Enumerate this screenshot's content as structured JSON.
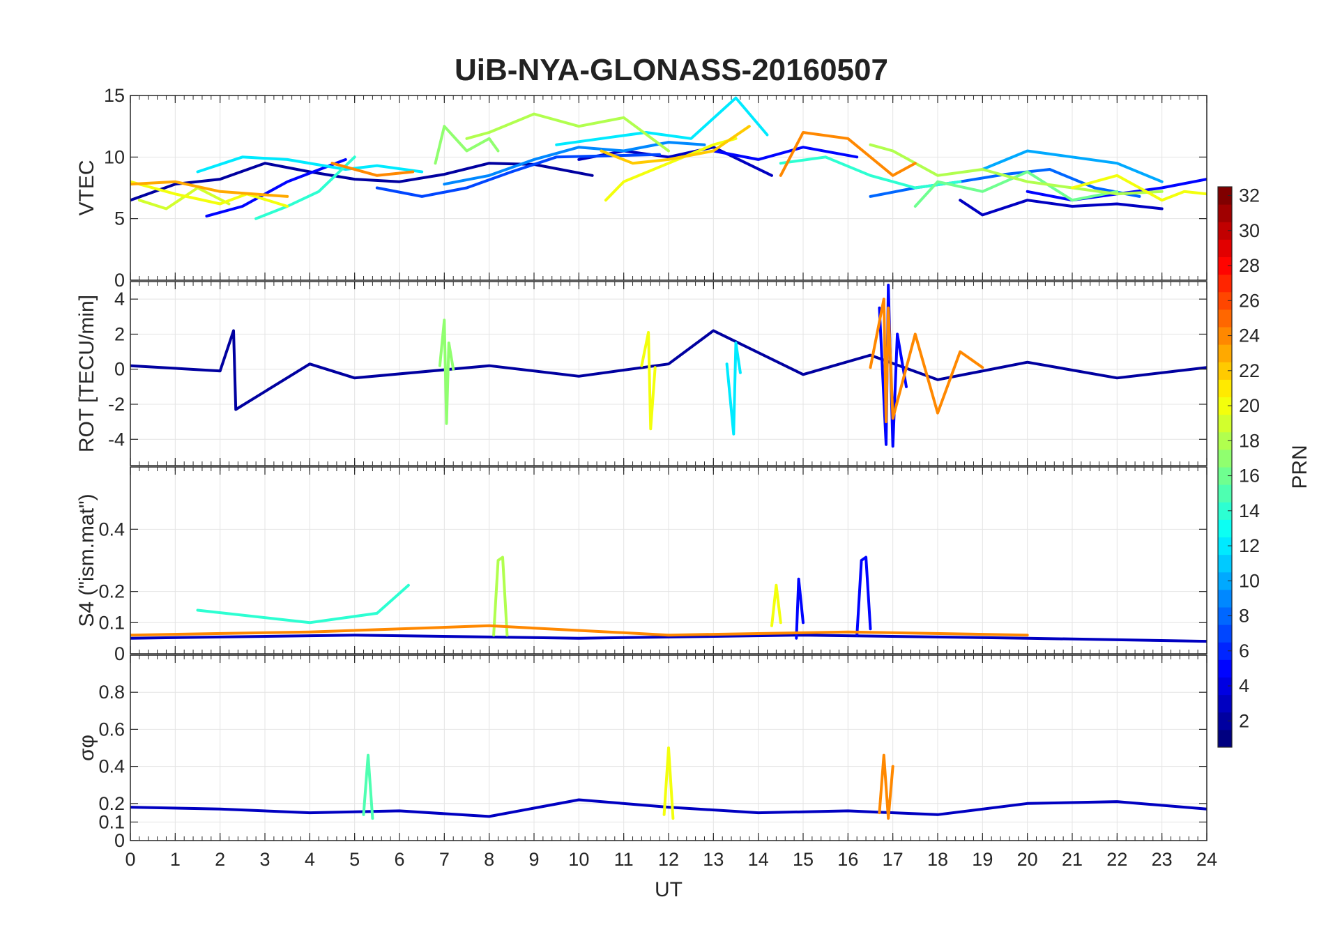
{
  "chart_data": {
    "type": "line",
    "title": "UiB-NYA-GLONASS-20160507",
    "xlabel": "UT",
    "x_ticks": [
      "0",
      "1",
      "2",
      "3",
      "4",
      "5",
      "6",
      "7",
      "8",
      "9",
      "10",
      "11",
      "12",
      "13",
      "14",
      "15",
      "16",
      "17",
      "18",
      "19",
      "20",
      "21",
      "22",
      "23",
      "24"
    ],
    "xlim": [
      0,
      24
    ],
    "grid": true,
    "colorbar": {
      "label": "PRN",
      "colormap": "jet",
      "range": [
        1,
        32
      ],
      "ticks": [
        "2",
        "4",
        "6",
        "8",
        "10",
        "12",
        "14",
        "16",
        "18",
        "20",
        "22",
        "24",
        "26",
        "28",
        "30",
        "32"
      ]
    },
    "panels": [
      {
        "id": "vtec",
        "ylabel": "VTEC",
        "ylim": [
          0,
          15
        ],
        "y_ticks": [
          "0",
          "5",
          "10",
          "15"
        ],
        "series": [
          {
            "prn": 2,
            "x": [
              0,
              1,
              2,
              3,
              4,
              5,
              6,
              7,
              8,
              9,
              10.3
            ],
            "y": [
              6.5,
              7.8,
              8.2,
              9.5,
              8.8,
              8.2,
              8.0,
              8.6,
              9.5,
              9.4,
              8.5
            ]
          },
          {
            "prn": 3,
            "x": [
              10,
              11,
              12,
              13,
              14.3
            ],
            "y": [
              9.8,
              10.5,
              10.0,
              10.8,
              8.5
            ]
          },
          {
            "prn": 3,
            "x": [
              18.5,
              19,
              20,
              21,
              22,
              23
            ],
            "y": [
              6.5,
              5.3,
              6.5,
              6.0,
              6.2,
              5.8
            ]
          },
          {
            "prn": 5,
            "x": [
              1.7,
              2.5,
              3.5,
              4.8
            ],
            "y": [
              5.2,
              6.0,
              8.0,
              9.8
            ]
          },
          {
            "prn": 5,
            "x": [
              13,
              14,
              15,
              16.2
            ],
            "y": [
              10.5,
              9.8,
              10.8,
              10.0
            ]
          },
          {
            "prn": 5,
            "x": [
              20,
              21,
              22,
              23,
              24
            ],
            "y": [
              7.2,
              6.5,
              7.0,
              7.5,
              8.2
            ]
          },
          {
            "prn": 7,
            "x": [
              5.5,
              6.5,
              7.5,
              8.5,
              9.5,
              11.8
            ],
            "y": [
              7.5,
              6.8,
              7.5,
              8.8,
              10.0,
              10.2
            ]
          },
          {
            "prn": 8,
            "x": [
              16.5,
              17.5,
              18.5,
              19.5,
              20.5,
              21.5,
              22.5
            ],
            "y": [
              6.8,
              7.5,
              8.0,
              8.6,
              9.0,
              7.5,
              6.8
            ]
          },
          {
            "prn": 9,
            "x": [
              7,
              8,
              9,
              10,
              11,
              12,
              12.8
            ],
            "y": [
              7.8,
              8.5,
              9.8,
              10.8,
              10.5,
              11.2,
              11.0
            ]
          },
          {
            "prn": 10,
            "x": [
              19,
              20,
              21,
              22,
              23
            ],
            "y": [
              9.0,
              10.5,
              10.0,
              9.5,
              8.0
            ]
          },
          {
            "prn": 12,
            "x": [
              1.5,
              2.5,
              3.5,
              4.8,
              5.5,
              6.5
            ],
            "y": [
              8.8,
              10.0,
              9.8,
              9.0,
              9.3,
              8.8
            ]
          },
          {
            "prn": 12,
            "x": [
              9.5,
              10.5,
              11.5,
              12.5,
              13.5,
              14.2
            ],
            "y": [
              11.0,
              11.5,
              12.0,
              11.5,
              14.8,
              11.8
            ]
          },
          {
            "prn": 14,
            "x": [
              2.8,
              3.5,
              4.2,
              5.0
            ],
            "y": [
              5.0,
              6.0,
              7.2,
              10.0
            ]
          },
          {
            "prn": 14,
            "x": [
              14.5,
              15.5,
              16.5,
              17.5,
              18.5
            ],
            "y": [
              9.5,
              10.0,
              8.5,
              7.5,
              8.0
            ]
          },
          {
            "prn": 16,
            "x": [
              17.5,
              18.0,
              19.0,
              20.0,
              21.0,
              22.0
            ],
            "y": [
              6.0,
              8.0,
              7.2,
              8.8,
              6.5,
              7.2
            ]
          },
          {
            "prn": 17,
            "x": [
              6.8,
              7.0,
              7.5,
              8.0,
              8.2
            ],
            "y": [
              9.5,
              12.5,
              10.5,
              11.5,
              10.5
            ]
          },
          {
            "prn": 18,
            "x": [
              7.5,
              8.0,
              9.0,
              10.0,
              11.0,
              12.0
            ],
            "y": [
              11.5,
              12.0,
              13.5,
              12.5,
              13.2,
              10.5
            ]
          },
          {
            "prn": 18,
            "x": [
              16.5,
              17.0,
              18.0,
              19.0,
              20.0,
              21.0,
              22.0,
              23.0
            ],
            "y": [
              11.0,
              10.5,
              8.5,
              9.0,
              8.0,
              7.5,
              7.0,
              7.2
            ]
          },
          {
            "prn": 19,
            "x": [
              0.2,
              0.8,
              1.5,
              2.2
            ],
            "y": [
              6.5,
              5.8,
              7.5,
              6.2
            ]
          },
          {
            "prn": 20,
            "x": [
              0,
              1,
              2,
              2.6,
              3.5
            ],
            "y": [
              8.0,
              7.0,
              6.2,
              7.0,
              6.0
            ]
          },
          {
            "prn": 20,
            "x": [
              10.6,
              11.0,
              12.0,
              13.0,
              13.5
            ],
            "y": [
              6.5,
              8.0,
              9.5,
              11.0,
              11.5
            ]
          },
          {
            "prn": 20,
            "x": [
              21,
              22,
              23,
              23.5,
              24
            ],
            "y": [
              7.5,
              8.5,
              6.5,
              7.2,
              7.0
            ]
          },
          {
            "prn": 22,
            "x": [
              10.5,
              11.2,
              12.0,
              13.0,
              13.8
            ],
            "y": [
              10.5,
              9.5,
              9.8,
              10.5,
              12.5
            ]
          },
          {
            "prn": 23,
            "x": [
              0,
              1.0,
              2.0,
              3.5
            ],
            "y": [
              7.8,
              8.0,
              7.2,
              6.8
            ]
          },
          {
            "prn": 24,
            "x": [
              4.5,
              5.5,
              6.3
            ],
            "y": [
              9.5,
              8.5,
              8.8
            ]
          },
          {
            "prn": 24,
            "x": [
              14.5,
              15.0,
              16.0,
              17.0,
              17.5
            ],
            "y": [
              8.5,
              12.0,
              11.5,
              8.5,
              9.5
            ]
          }
        ]
      },
      {
        "id": "rot",
        "ylabel": "ROT [TECU/min]",
        "ylim": [
          -5.5,
          5
        ],
        "y_ticks": [
          "-4",
          "-2",
          "0",
          "2",
          "4"
        ],
        "series": [
          {
            "prn": 2,
            "x": [
              0,
              2,
              2.3,
              2.35,
              4,
              5,
              8,
              10,
              12,
              13,
              15,
              16.5,
              18,
              20,
              22,
              24
            ],
            "y": [
              0.2,
              -0.1,
              2.2,
              -2.3,
              0.3,
              -0.5,
              0.2,
              -0.4,
              0.3,
              2.2,
              -0.3,
              0.8,
              -0.6,
              0.4,
              -0.5,
              0.1
            ]
          },
          {
            "prn": 5,
            "x": [
              16.7,
              16.85,
              16.9,
              17.0,
              17.1,
              17.3
            ],
            "y": [
              3.5,
              -4.3,
              4.8,
              -4.4,
              2.0,
              -1.0
            ]
          },
          {
            "prn": 12,
            "x": [
              13.3,
              13.45,
              13.5,
              13.6
            ],
            "y": [
              0.3,
              -3.7,
              1.5,
              -0.2
            ]
          },
          {
            "prn": 17,
            "x": [
              6.9,
              7.0,
              7.05,
              7.1,
              7.2
            ],
            "y": [
              0.2,
              2.8,
              -3.1,
              1.5,
              0.0
            ]
          },
          {
            "prn": 20,
            "x": [
              11.4,
              11.55,
              11.6,
              11.7
            ],
            "y": [
              0.2,
              2.1,
              -3.4,
              0.1
            ]
          },
          {
            "prn": 24,
            "x": [
              16.5,
              16.8,
              16.85,
              16.9,
              17.0,
              17.5,
              18.0,
              18.5,
              19.0
            ],
            "y": [
              0.1,
              4.0,
              -3.0,
              3.5,
              -2.8,
              2.0,
              -2.5,
              1.0,
              0.1
            ]
          }
        ]
      },
      {
        "id": "s4",
        "ylabel": "S4 (\"ism.mat\")",
        "ylim": [
          0,
          0.6
        ],
        "y_ticks": [
          "0",
          "0.1",
          "0.2",
          "0.4"
        ],
        "series": [
          {
            "prn": 3,
            "x": [
              0,
              5,
              10,
              15,
              20,
              24
            ],
            "y": [
              0.05,
              0.06,
              0.05,
              0.06,
              0.05,
              0.04
            ]
          },
          {
            "prn": 5,
            "x": [
              16.2,
              16.3,
              16.4,
              16.5
            ],
            "y": [
              0.06,
              0.3,
              0.31,
              0.08
            ]
          },
          {
            "prn": 5,
            "x": [
              14.85,
              14.9,
              15.0
            ],
            "y": [
              0.05,
              0.24,
              0.1
            ]
          },
          {
            "prn": 14,
            "x": [
              1.5,
              4,
              5.5,
              6.2
            ],
            "y": [
              0.14,
              0.1,
              0.13,
              0.22
            ]
          },
          {
            "prn": 18,
            "x": [
              8.1,
              8.2,
              8.3,
              8.4
            ],
            "y": [
              0.06,
              0.3,
              0.31,
              0.06
            ]
          },
          {
            "prn": 20,
            "x": [
              14.3,
              14.4,
              14.5
            ],
            "y": [
              0.09,
              0.22,
              0.1
            ]
          },
          {
            "prn": 24,
            "x": [
              0,
              4,
              8,
              12,
              16,
              20
            ],
            "y": [
              0.06,
              0.07,
              0.09,
              0.06,
              0.07,
              0.06
            ]
          }
        ]
      },
      {
        "id": "sigma_phi",
        "ylabel": "σφ",
        "ylim": [
          0,
          1
        ],
        "y_ticks": [
          "0",
          "0.1",
          "0.2",
          "0.4",
          "0.6",
          "0.8"
        ],
        "series": [
          {
            "prn": 3,
            "x": [
              0,
              2,
              4,
              6,
              8,
              10,
              12,
              14,
              16,
              18,
              20,
              22,
              24
            ],
            "y": [
              0.18,
              0.17,
              0.15,
              0.16,
              0.13,
              0.22,
              0.18,
              0.15,
              0.16,
              0.14,
              0.2,
              0.21,
              0.17
            ]
          },
          {
            "prn": 15,
            "x": [
              5.2,
              5.3,
              5.4
            ],
            "y": [
              0.14,
              0.46,
              0.12
            ]
          },
          {
            "prn": 20,
            "x": [
              11.9,
              12.0,
              12.1
            ],
            "y": [
              0.14,
              0.5,
              0.12
            ]
          },
          {
            "prn": 24,
            "x": [
              16.7,
              16.8,
              16.9,
              17.0
            ],
            "y": [
              0.15,
              0.46,
              0.12,
              0.4
            ]
          }
        ]
      }
    ]
  }
}
